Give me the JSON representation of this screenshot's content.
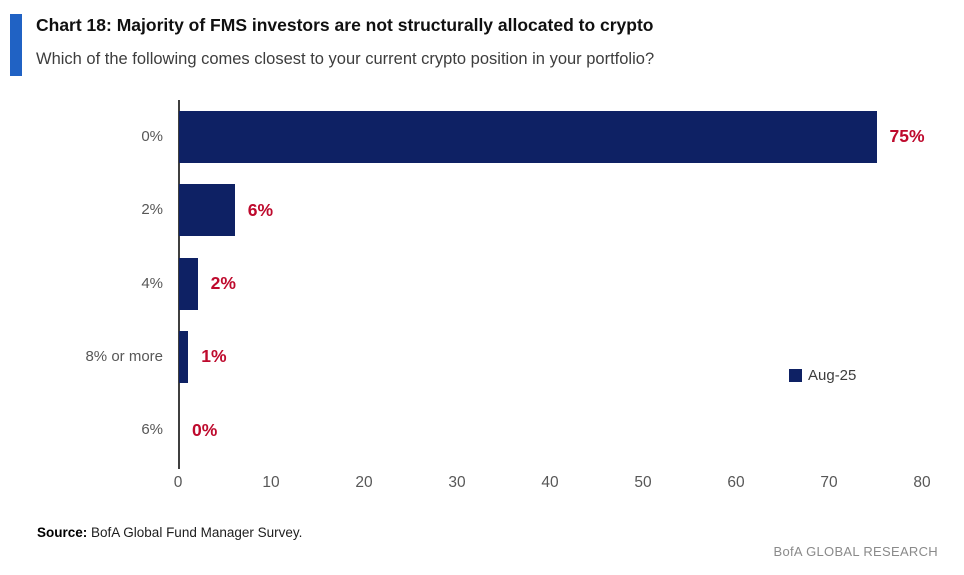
{
  "header": {
    "title": "Chart 18: Majority of FMS investors are not structurally allocated to crypto",
    "subtitle": "Which of the following comes closest to your current crypto position in your portfolio?"
  },
  "chart_data": {
    "type": "bar",
    "orientation": "horizontal",
    "title": "Chart 18: Majority of FMS investors are not structurally allocated to crypto",
    "subtitle": "Which of the following comes closest to your current crypto position in your portfolio?",
    "categories": [
      "0%",
      "2%",
      "4%",
      "8% or more",
      "6%"
    ],
    "series": [
      {
        "name": "Aug-25",
        "values": [
          75,
          6,
          2,
          1,
          0
        ]
      }
    ],
    "value_labels": [
      "75%",
      "6%",
      "2%",
      "1%",
      "0%"
    ],
    "x_ticks": [
      "0",
      "10",
      "20",
      "30",
      "40",
      "50",
      "60",
      "70",
      "80"
    ],
    "xlim": [
      0,
      80
    ],
    "xlabel": "",
    "ylabel": "",
    "grid": false,
    "legend": {
      "label": "Aug-25",
      "position": "right-middle"
    },
    "colors": {
      "bar": "#0E2164",
      "value_label": "#BE0A2D",
      "category_label": "#575757",
      "tick_label": "#575757",
      "axis": "#3F3F3F",
      "accent": "#2062C4"
    }
  },
  "footer": {
    "source_label": "Source:",
    "source_text": " BofA Global Fund Manager Survey.",
    "brand": "BofA GLOBAL RESEARCH"
  }
}
